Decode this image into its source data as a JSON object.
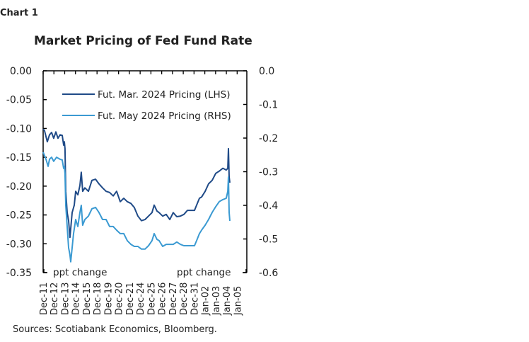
{
  "chart_label": "Chart 1",
  "source": "Sources: Scotiabank Economics, Bloomberg.",
  "chart_data": {
    "type": "line",
    "title": "Market Pricing of Fed Fund Rate",
    "xlabel": "",
    "ylabel_left": "",
    "ylabel_right": "",
    "left_axis_note": "ppt change",
    "right_axis_note": "ppt change",
    "x_tick_labels": [
      "Dec-11",
      "Dec-12",
      "Dec-13",
      "Dec-14",
      "Dec-15",
      "Dec-18",
      "Dec-19",
      "Dec-20",
      "Dec-21",
      "Dec-24",
      "Dec-25",
      "Dec-26",
      "Dec-27",
      "Dec-28",
      "Dec-31",
      "Jan-02",
      "Jan-03",
      "Jan-04",
      "Jan-05"
    ],
    "ylim_left": [
      -0.35,
      0.0
    ],
    "yticks_left": [
      "0.00",
      "-0.05",
      "-0.10",
      "-0.15",
      "-0.20",
      "-0.25",
      "-0.30",
      "-0.35"
    ],
    "ylim_right": [
      -0.6,
      0.0
    ],
    "yticks_right": [
      "0.0",
      "-0.1",
      "-0.2",
      "-0.3",
      "-0.4",
      "-0.5",
      "-0.6"
    ],
    "grid": false,
    "legend_position": "top-left",
    "series": [
      {
        "name": "Fut. Mar. 2024 Pricing (LHS)",
        "axis": "left",
        "color": "#1f4a87",
        "x": [
          0,
          0.13,
          0.39,
          0.59,
          0.79,
          0.98,
          1.18,
          1.38,
          1.57,
          1.77,
          1.9,
          1.97,
          2.03,
          2.1,
          2.23,
          2.36,
          2.49,
          2.69,
          2.89,
          3.02,
          3.22,
          3.41,
          3.54,
          3.67,
          3.87,
          4.2,
          4.53,
          4.86,
          5.18,
          5.51,
          5.84,
          6.17,
          6.5,
          6.82,
          7.15,
          7.48,
          7.81,
          8.14,
          8.46,
          8.79,
          9.12,
          9.45,
          9.78,
          10.1,
          10.3,
          10.56,
          10.76,
          11.09,
          11.42,
          11.75,
          12.07,
          12.4,
          12.73,
          13.06,
          13.39,
          13.71,
          14.04,
          14.24,
          14.5,
          14.7,
          15.03,
          15.35,
          15.68,
          16.01,
          16.34,
          16.67,
          16.99,
          17.13,
          17.19,
          17.26,
          17.32
        ],
        "y": [
          -0.101,
          -0.104,
          -0.123,
          -0.111,
          -0.107,
          -0.117,
          -0.106,
          -0.117,
          -0.111,
          -0.112,
          -0.129,
          -0.123,
          -0.135,
          -0.209,
          -0.246,
          -0.26,
          -0.289,
          -0.246,
          -0.233,
          -0.209,
          -0.215,
          -0.199,
          -0.176,
          -0.209,
          -0.203,
          -0.209,
          -0.19,
          -0.188,
          -0.196,
          -0.203,
          -0.209,
          -0.211,
          -0.217,
          -0.209,
          -0.227,
          -0.221,
          -0.227,
          -0.23,
          -0.237,
          -0.252,
          -0.26,
          -0.258,
          -0.252,
          -0.246,
          -0.233,
          -0.243,
          -0.246,
          -0.252,
          -0.249,
          -0.258,
          -0.246,
          -0.253,
          -0.252,
          -0.249,
          -0.242,
          -0.242,
          -0.242,
          -0.233,
          -0.221,
          -0.219,
          -0.209,
          -0.196,
          -0.19,
          -0.178,
          -0.174,
          -0.169,
          -0.172,
          -0.169,
          -0.135,
          -0.184,
          -0.194
        ]
      },
      {
        "name": "Fut. May 2024 Pricing (RHS)",
        "axis": "right",
        "color": "#3b9ad2",
        "x": [
          0,
          0.26,
          0.46,
          0.59,
          0.79,
          0.98,
          1.25,
          1.57,
          1.77,
          1.9,
          1.97,
          2.03,
          2.1,
          2.23,
          2.36,
          2.49,
          2.56,
          2.69,
          2.82,
          3.02,
          3.22,
          3.41,
          3.54,
          3.67,
          3.87,
          4.2,
          4.53,
          4.86,
          5.18,
          5.51,
          5.84,
          6.17,
          6.5,
          6.82,
          7.15,
          7.48,
          7.81,
          8.14,
          8.46,
          8.79,
          9.12,
          9.45,
          9.78,
          10.1,
          10.3,
          10.56,
          10.76,
          11.09,
          11.42,
          11.75,
          12.07,
          12.4,
          12.73,
          13.06,
          13.39,
          13.71,
          14.04,
          14.24,
          14.5,
          14.7,
          15.03,
          15.35,
          15.68,
          16.01,
          16.34,
          16.67,
          16.99,
          17.13,
          17.19,
          17.26,
          17.32
        ],
        "y": [
          -0.242,
          -0.263,
          -0.284,
          -0.263,
          -0.257,
          -0.269,
          -0.257,
          -0.263,
          -0.265,
          -0.29,
          -0.284,
          -0.305,
          -0.4,
          -0.463,
          -0.526,
          -0.547,
          -0.568,
          -0.526,
          -0.484,
          -0.442,
          -0.463,
          -0.421,
          -0.4,
          -0.459,
          -0.442,
          -0.432,
          -0.41,
          -0.406,
          -0.421,
          -0.442,
          -0.442,
          -0.463,
          -0.463,
          -0.474,
          -0.484,
          -0.484,
          -0.505,
          -0.516,
          -0.522,
          -0.522,
          -0.53,
          -0.53,
          -0.52,
          -0.505,
          -0.484,
          -0.501,
          -0.505,
          -0.522,
          -0.516,
          -0.516,
          -0.516,
          -0.509,
          -0.516,
          -0.52,
          -0.52,
          -0.52,
          -0.52,
          -0.505,
          -0.484,
          -0.474,
          -0.459,
          -0.442,
          -0.421,
          -0.404,
          -0.389,
          -0.383,
          -0.379,
          -0.358,
          -0.316,
          -0.421,
          -0.446
        ]
      }
    ]
  }
}
